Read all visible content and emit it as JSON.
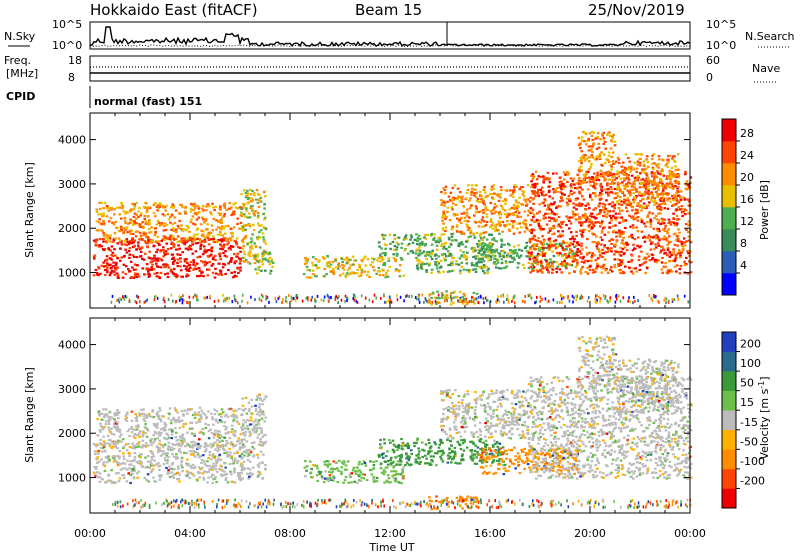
{
  "header": {
    "station": "Hokkaido East (fitACF)",
    "beam": "Beam 15",
    "date": "25/Nov/2019"
  },
  "noise_panel": {
    "left_label": "N.Sky",
    "right_label": "N.Search",
    "ticks": [
      "10^5",
      "10^0"
    ]
  },
  "freq_panel": {
    "left_label_1": "Freq.",
    "left_label_2": "[MHz]",
    "left_ticks": [
      "18",
      "8"
    ],
    "right_label": "Nave",
    "right_ticks": [
      "60",
      "0"
    ]
  },
  "cpid_panel": {
    "left_label": "CPID",
    "program": "normal (fast) 151"
  },
  "colors": {
    "power": [
      "#0000ff",
      "#2a5cb8",
      "#3a8a5a",
      "#4caf50",
      "#e8c000",
      "#ff8c00",
      "#ff4500",
      "#ee0000"
    ],
    "velocity": [
      "#ee0000",
      "#ff4500",
      "#ff8c00",
      "#ffb000",
      "#bbbbbb",
      "#6cc04a",
      "#3a9a3a",
      "#2a6a8a",
      "#2040c0"
    ]
  },
  "chart_data": [
    {
      "type": "heatmap",
      "name": "power-panel",
      "ylabel": "Slant Range [km]",
      "y_ticks": [
        1000,
        2000,
        3000,
        4000
      ],
      "ylim": [
        200,
        4600
      ],
      "xlim": [
        0,
        24
      ],
      "x_ticks": [
        "00:00",
        "04:00",
        "08:00",
        "12:00",
        "16:00",
        "20:00",
        "00:00"
      ],
      "colorbar": {
        "label": "Power [dB]",
        "ticks": [
          "28",
          "24",
          "20",
          "16",
          "12",
          "8",
          "4"
        ],
        "range": [
          0,
          32
        ]
      },
      "echo_regions": [
        {
          "t0": 0.1,
          "t1": 6.0,
          "r0": 900,
          "r1": 1800,
          "level": 7
        },
        {
          "t0": 0.2,
          "t1": 6.2,
          "r0": 1700,
          "r1": 2600,
          "level": 5
        },
        {
          "t0": 6.0,
          "t1": 7.0,
          "r0": 1200,
          "r1": 2900,
          "level": 4
        },
        {
          "t0": 6.5,
          "t1": 7.3,
          "r0": 1000,
          "r1": 1500,
          "level": 3
        },
        {
          "t0": 8.5,
          "t1": 12.5,
          "r0": 900,
          "r1": 1400,
          "level": 4
        },
        {
          "t0": 11.5,
          "t1": 16.5,
          "r0": 1400,
          "r1": 1900,
          "level": 3
        },
        {
          "t0": 13.0,
          "t1": 16.0,
          "r0": 1000,
          "r1": 1400,
          "level": 3
        },
        {
          "t0": 13.5,
          "t1": 15.5,
          "r0": 300,
          "r1": 600,
          "level": 4
        },
        {
          "t0": 14.0,
          "t1": 17.5,
          "r0": 1900,
          "r1": 3000,
          "level": 5
        },
        {
          "t0": 15.5,
          "t1": 19.5,
          "r0": 1100,
          "r1": 1700,
          "level": 3
        },
        {
          "t0": 17.5,
          "t1": 24.0,
          "r0": 1000,
          "r1": 3300,
          "level": 6
        },
        {
          "t0": 19.5,
          "t1": 21.0,
          "r0": 3000,
          "r1": 4200,
          "level": 5
        },
        {
          "t0": 21.0,
          "t1": 23.5,
          "r0": 2500,
          "r1": 3700,
          "level": 5
        }
      ]
    },
    {
      "type": "heatmap",
      "name": "velocity-panel",
      "ylabel": "Slant Range [km]",
      "xlabel": "Time UT",
      "y_ticks": [
        1000,
        2000,
        3000,
        4000
      ],
      "ylim": [
        200,
        4600
      ],
      "xlim": [
        0,
        24
      ],
      "x_ticks": [
        "00:00",
        "04:00",
        "08:00",
        "12:00",
        "16:00",
        "20:00",
        "00:00"
      ],
      "colorbar": {
        "label": "Velocity [m s^-1]",
        "ticks": [
          "200",
          "100",
          "50",
          "15",
          "-15",
          "-50",
          "-100",
          "-200"
        ],
        "range": [
          -250,
          250
        ]
      },
      "echo_regions": [
        {
          "t0": 0.1,
          "t1": 6.0,
          "r0": 900,
          "r1": 1800,
          "level": 4
        },
        {
          "t0": 0.2,
          "t1": 6.2,
          "r0": 1700,
          "r1": 2600,
          "level": 4
        },
        {
          "t0": 6.0,
          "t1": 7.0,
          "r0": 1000,
          "r1": 2900,
          "level": 4
        },
        {
          "t0": 8.5,
          "t1": 12.5,
          "r0": 900,
          "r1": 1400,
          "level": 5
        },
        {
          "t0": 11.5,
          "t1": 16.5,
          "r0": 1300,
          "r1": 1900,
          "level": 6
        },
        {
          "t0": 13.5,
          "t1": 15.5,
          "r0": 300,
          "r1": 600,
          "level": 2
        },
        {
          "t0": 14.0,
          "t1": 17.5,
          "r0": 1900,
          "r1": 3000,
          "level": 4
        },
        {
          "t0": 15.5,
          "t1": 19.5,
          "r0": 1100,
          "r1": 1700,
          "level": 2
        },
        {
          "t0": 17.5,
          "t1": 24.0,
          "r0": 1000,
          "r1": 3300,
          "level": 4
        },
        {
          "t0": 19.5,
          "t1": 21.0,
          "r0": 3000,
          "r1": 4200,
          "level": 4
        },
        {
          "t0": 21.0,
          "t1": 23.5,
          "r0": 2500,
          "r1": 3700,
          "level": 4
        }
      ]
    }
  ]
}
